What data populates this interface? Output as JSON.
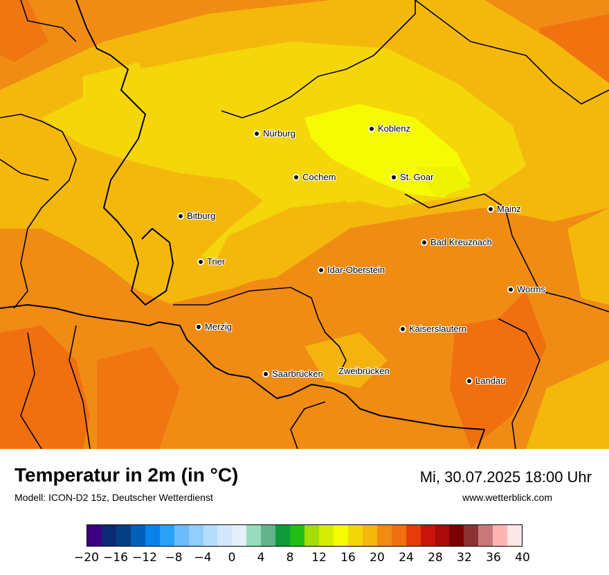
{
  "map": {
    "cities": [
      {
        "name": "Nürburg",
        "dot": true
      },
      {
        "name": "Koblenz",
        "dot": true
      },
      {
        "name": "Cochem",
        "dot": true
      },
      {
        "name": "St. Goar",
        "dot": true
      },
      {
        "name": "Mainz",
        "dot": true
      },
      {
        "name": "Bitburg",
        "dot": true
      },
      {
        "name": "Bad Kreuznach",
        "dot": true
      },
      {
        "name": "Trier",
        "dot": true
      },
      {
        "name": "Idar-Oberstein",
        "dot": true
      },
      {
        "name": "Worms",
        "dot": true
      },
      {
        "name": "Merzig",
        "dot": true
      },
      {
        "name": "Kaiserslautern",
        "dot": true
      },
      {
        "name": "Saarbrücken",
        "dot": true
      },
      {
        "name": "Zweibrücken",
        "dot": false
      },
      {
        "name": "Landau",
        "dot": true
      }
    ]
  },
  "footer": {
    "title": "Temperatur in 2m (in °C)",
    "model": "Modell: ICON-D2 15z, Deutscher Wetterdienst",
    "datetime": "Mi, 30.07.2025 18:00 Uhr",
    "site": "www.wetterblick.com"
  },
  "legend": {
    "colors": [
      "#3c0080",
      "#0a2a78",
      "#063e86",
      "#0360b8",
      "#0a82e8",
      "#2aa0f8",
      "#6cbcfc",
      "#92cdfc",
      "#b4ddfc",
      "#d2e8fc",
      "#e2f0fc",
      "#96dcbc",
      "#62b48e",
      "#109a3a",
      "#22be14",
      "#a4de08",
      "#d2ee04",
      "#f6fa02",
      "#f4d60a",
      "#f4b80c",
      "#f08c14",
      "#f07010",
      "#e63c0a",
      "#c8140c",
      "#aa0a0a",
      "#7a0000",
      "#8c3232",
      "#c87878",
      "#ffb4b4",
      "#ffe6e6"
    ],
    "tick_labels": [
      "−20",
      "−16",
      "−12",
      "−8",
      "−4",
      "0",
      "4",
      "8",
      "12",
      "16",
      "20",
      "24",
      "28",
      "32",
      "36",
      "40"
    ]
  }
}
